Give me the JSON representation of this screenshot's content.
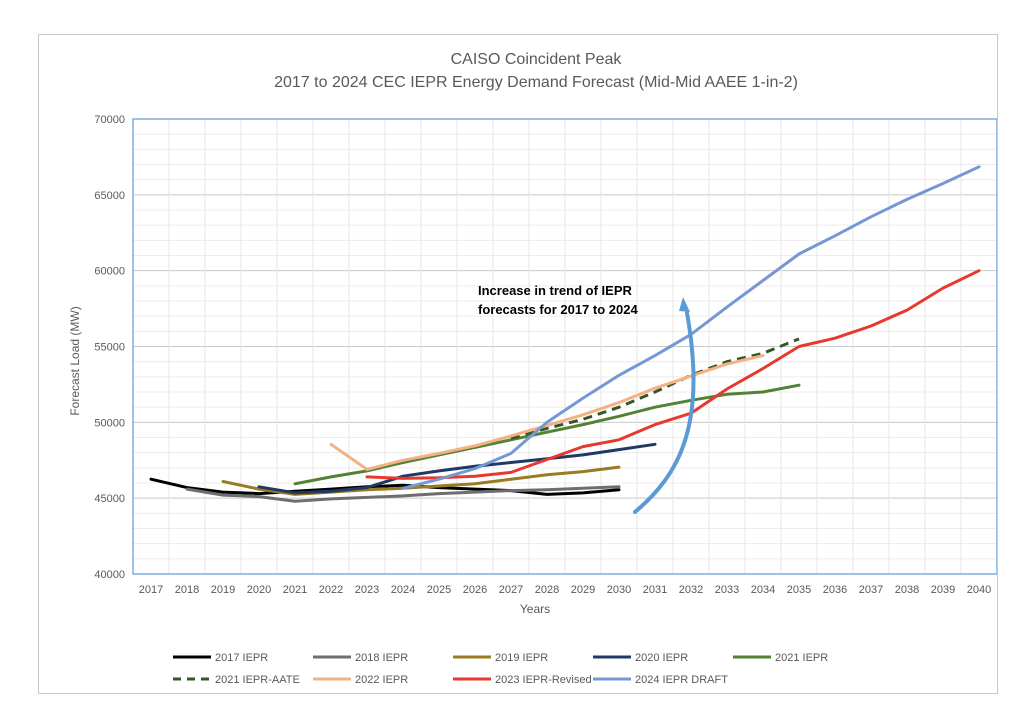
{
  "chart_data": {
    "type": "line",
    "title": "CAISO Coincident Peak",
    "subtitle": "2017 to 2024 CEC IEPR Energy Demand Forecast (Mid-Mid AAEE 1-in-2)",
    "xlabel": "Years",
    "ylabel": "Forecast Load (MW)",
    "ylim": [
      40000,
      70000
    ],
    "y_ticks": [
      40000,
      45000,
      50000,
      55000,
      60000,
      65000,
      70000
    ],
    "xlim": [
      2017,
      2040
    ],
    "x_ticks": [
      2017,
      2018,
      2019,
      2020,
      2021,
      2022,
      2023,
      2024,
      2025,
      2026,
      2027,
      2028,
      2029,
      2030,
      2031,
      2032,
      2033,
      2034,
      2035,
      2036,
      2037,
      2038,
      2039,
      2040
    ],
    "grid": true,
    "legend_position": "bottom",
    "annotation": {
      "lines": [
        "Increase in trend of IEPR",
        "forecasts for 2017 to 2024"
      ],
      "arrow_color": "#5b9bd5"
    },
    "series": [
      {
        "name": "2017 IEPR",
        "color": "#000000",
        "dashed": false,
        "x": [
          2017,
          2018,
          2019,
          2020,
          2021,
          2022,
          2023,
          2024,
          2025,
          2026,
          2027,
          2028,
          2029,
          2030
        ],
        "y": [
          46250,
          45700,
          45400,
          45300,
          45450,
          45600,
          45750,
          45850,
          45700,
          45600,
          45500,
          45250,
          45350,
          45550
        ]
      },
      {
        "name": "2018 IEPR",
        "color": "#6e6e6e",
        "dashed": false,
        "x": [
          2018,
          2019,
          2020,
          2021,
          2022,
          2023,
          2024,
          2025,
          2026,
          2027,
          2028,
          2029,
          2030
        ],
        "y": [
          45600,
          45200,
          45100,
          44800,
          44950,
          45050,
          45150,
          45300,
          45400,
          45500,
          45550,
          45650,
          45750
        ]
      },
      {
        "name": "2019 IEPR",
        "color": "#9a7b24",
        "dashed": false,
        "x": [
          2019,
          2020,
          2021,
          2022,
          2023,
          2024,
          2025,
          2026,
          2027,
          2028,
          2029,
          2030
        ],
        "y": [
          46100,
          45600,
          45250,
          45400,
          45550,
          45650,
          45800,
          45950,
          46250,
          46550,
          46750,
          47050
        ]
      },
      {
        "name": "2020 IEPR",
        "color": "#203864",
        "dashed": false,
        "x": [
          2020,
          2021,
          2022,
          2023,
          2024,
          2025,
          2026,
          2027,
          2028,
          2029,
          2030,
          2031
        ],
        "y": [
          45750,
          45350,
          45450,
          45700,
          46450,
          46800,
          47100,
          47350,
          47600,
          47850,
          48200,
          48550
        ]
      },
      {
        "name": "2021 IEPR",
        "color": "#548235",
        "dashed": false,
        "x": [
          2021,
          2022,
          2023,
          2024,
          2025,
          2026,
          2027,
          2028,
          2029,
          2030,
          2031,
          2032,
          2033,
          2034,
          2035
        ],
        "y": [
          45950,
          46400,
          46800,
          47350,
          47850,
          48350,
          48850,
          49350,
          49850,
          50400,
          51000,
          51450,
          51850,
          52000,
          52450
        ]
      },
      {
        "name": "2021 IEPR-AATE",
        "color": "#375623",
        "dashed": true,
        "x": [
          2027,
          2028,
          2029,
          2030,
          2031,
          2032,
          2033,
          2034,
          2035
        ],
        "y": [
          48950,
          49600,
          50200,
          51000,
          52000,
          53100,
          54000,
          54550,
          55500
        ]
      },
      {
        "name": "2022 IEPR",
        "color": "#f4b183",
        "dashed": false,
        "x": [
          2022,
          2023,
          2024,
          2025,
          2026,
          2027,
          2028,
          2029,
          2030,
          2031,
          2032,
          2033,
          2034
        ],
        "y": [
          48550,
          46900,
          47500,
          47950,
          48450,
          49100,
          49800,
          50500,
          51300,
          52250,
          53050,
          53850,
          54400
        ]
      },
      {
        "name": "2023 IEPR-Revised",
        "color": "#e8392f",
        "dashed": false,
        "x": [
          2023,
          2024,
          2025,
          2026,
          2027,
          2028,
          2029,
          2030,
          2031,
          2032,
          2033,
          2034,
          2035,
          2036,
          2037,
          2038,
          2039,
          2040
        ],
        "y": [
          46400,
          46300,
          46350,
          46450,
          46700,
          47550,
          48400,
          48850,
          49850,
          50600,
          52200,
          53550,
          55000,
          55550,
          56350,
          57400,
          58850,
          60000
        ]
      },
      {
        "name": "2024 IEPR DRAFT",
        "color": "#7598d4",
        "dashed": false,
        "x": [
          2024,
          2025,
          2026,
          2027,
          2028,
          2029,
          2030,
          2031,
          2032,
          2033,
          2034,
          2035,
          2036,
          2037,
          2038,
          2039,
          2040
        ],
        "y": [
          45650,
          46250,
          46950,
          47950,
          50000,
          51600,
          53100,
          54400,
          55800,
          57600,
          59350,
          61100,
          62300,
          63550,
          64700,
          65750,
          66850
        ]
      }
    ]
  }
}
